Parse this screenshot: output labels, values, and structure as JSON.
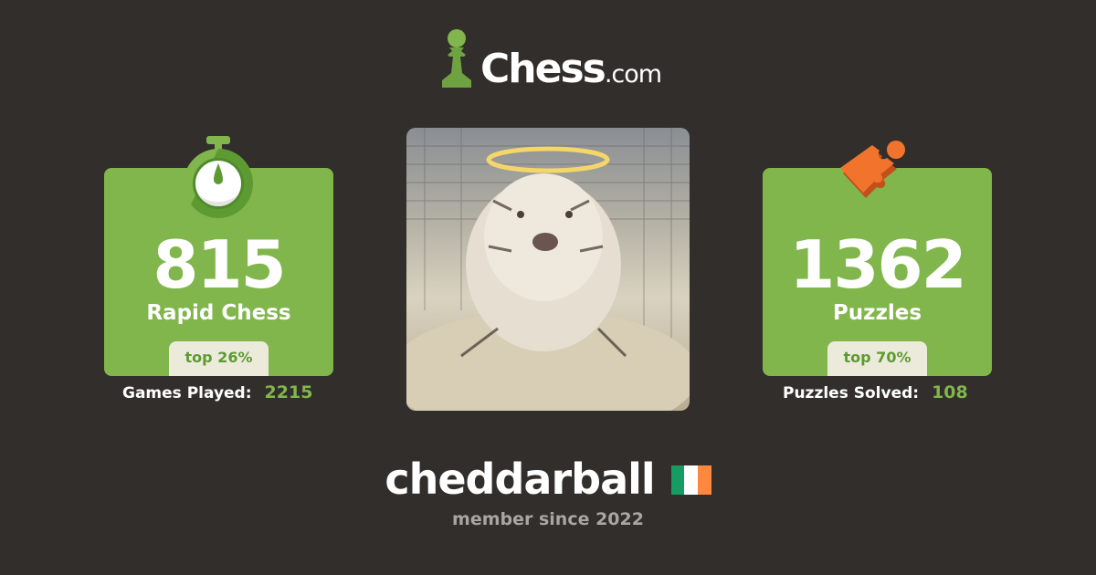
{
  "brand": {
    "name": "Chess",
    "domain": ".com"
  },
  "colors": {
    "background": "#312e2b",
    "green": "#81b64c",
    "badge": "#ebeadb",
    "accent_text": "#5d9b32",
    "puzzle_orange": "#f2742c"
  },
  "rapid": {
    "rating": "815",
    "label": "Rapid Chess",
    "percentile": "top 26%",
    "stat_label": "Games Played:",
    "stat_value": "2215",
    "icon": "stopwatch-icon"
  },
  "puzzles": {
    "rating": "1362",
    "label": "Puzzles",
    "percentile": "top 70%",
    "stat_label": "Puzzles Solved:",
    "stat_value": "108",
    "icon": "puzzle-piece-icon"
  },
  "profile": {
    "username": "cheddarball",
    "country_flag": "ireland-flag",
    "flag_colors": [
      "#169b62",
      "#ffffff",
      "#ff883e"
    ],
    "member_since": "member since 2022",
    "avatar": "white tiger with halo"
  }
}
